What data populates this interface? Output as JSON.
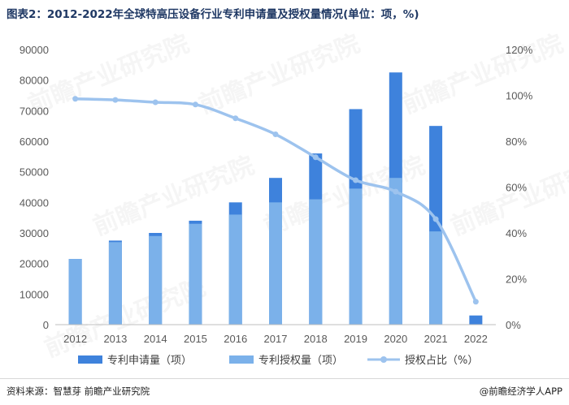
{
  "title": "图表2：2012-2022年全球特高压设备行业专利申请量及授权量情况(单位：项，%)",
  "footer": {
    "source": "资料来源：智慧芽 前瞻产业研究院",
    "brand": "@前瞻经济学人APP"
  },
  "watermark": "前瞻产业研究院",
  "colors": {
    "application": "#3e82dc",
    "grant": "#7bb1ea",
    "ratio": "#9dc3ee",
    "axis": "#bfbfbf",
    "text": "#595959"
  },
  "chart_data": {
    "type": "bar",
    "categories": [
      "2012",
      "2013",
      "2014",
      "2015",
      "2016",
      "2017",
      "2018",
      "2019",
      "2020",
      "2021",
      "2022"
    ],
    "series": [
      {
        "name": "专利申请量（项）",
        "kind": "bar",
        "axis": "left",
        "values": [
          21500,
          27500,
          30000,
          34000,
          40000,
          48000,
          56000,
          70500,
          82500,
          65000,
          3000
        ]
      },
      {
        "name": "专利授权量（项）",
        "kind": "bar",
        "axis": "left",
        "values": [
          21500,
          27000,
          29000,
          33000,
          36000,
          40000,
          41000,
          44500,
          48000,
          30500,
          0
        ]
      },
      {
        "name": "授权占比（%）",
        "kind": "line",
        "axis": "right",
        "values": [
          98.5,
          98,
          97,
          96,
          90,
          83,
          73,
          63,
          58,
          46,
          10
        ]
      }
    ],
    "y_left": {
      "min": 0,
      "max": 90000,
      "ticks": [
        "0",
        "10000",
        "20000",
        "30000",
        "40000",
        "50000",
        "60000",
        "70000",
        "80000",
        "90000"
      ]
    },
    "y_right": {
      "min": 0,
      "max": 120,
      "ticks": [
        "0%",
        "20%",
        "40%",
        "60%",
        "80%",
        "100%",
        "120%"
      ]
    },
    "grid": false,
    "legend_position": "bottom"
  }
}
